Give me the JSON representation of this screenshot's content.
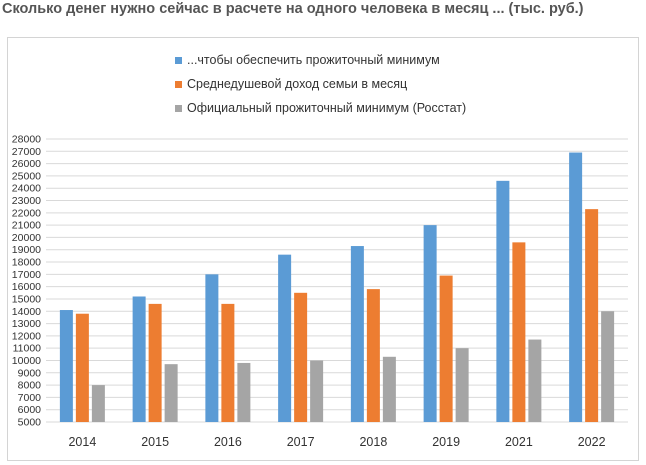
{
  "page": {
    "title": "Сколько денег нужно сейчас в расчете на одного человека в месяц ... (тыс. руб.)"
  },
  "chart_data": {
    "type": "bar",
    "categories": [
      "2014",
      "2015",
      "2016",
      "2017",
      "2018",
      "2019",
      "2021",
      "2022"
    ],
    "series": [
      {
        "name": "...чтобы обеспечить прожиточный минимум",
        "color": "#5b9bd5",
        "values": [
          14100,
          15200,
          17000,
          18600,
          19300,
          21000,
          24600,
          26900
        ]
      },
      {
        "name": "Среднедушевой доход семьи в месяц",
        "color": "#ed7d31",
        "values": [
          13800,
          14600,
          14600,
          15500,
          15800,
          16900,
          19600,
          22300
        ]
      },
      {
        "name": "Официальный прожиточный минимум (Росстат)",
        "color": "#a5a5a5",
        "values": [
          8000,
          9700,
          9800,
          10000,
          10300,
          11000,
          11700,
          14000
        ]
      }
    ],
    "ylim": [
      5000,
      28000
    ],
    "ytick_step": 1000,
    "y_ticks": [
      "5000",
      "6000",
      "7000",
      "8000",
      "9000",
      "10000",
      "11000",
      "12000",
      "13000",
      "14000",
      "15000",
      "16000",
      "17000",
      "18000",
      "19000",
      "20000",
      "21000",
      "22000",
      "23000",
      "24000",
      "25000",
      "26000",
      "27000",
      "28000"
    ],
    "grid": true,
    "legend": "top"
  }
}
